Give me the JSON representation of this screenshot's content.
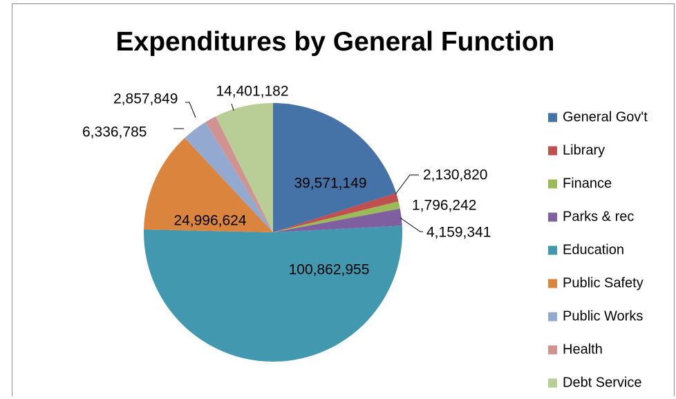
{
  "chart_data": {
    "type": "pie",
    "title": "Expenditures by General Function",
    "legend_position": "right",
    "categories": [
      "General Gov't",
      "Library",
      "Finance",
      "Parks & rec",
      "Education",
      "Public Safety",
      "Public Works",
      "Health",
      "Debt Service"
    ],
    "values": [
      39571149,
      2130820,
      1796242,
      4159341,
      100862955,
      24996624,
      6336785,
      2857849,
      14401182
    ],
    "value_labels": [
      "39,571,149",
      "2,130,820",
      "1,796,242",
      "4,159,341",
      "100,862,955",
      "24,996,624",
      "6,336,785",
      "2,857,849",
      "14,401,182"
    ],
    "colors": [
      "#4572a7",
      "#c0504d",
      "#9bbb59",
      "#7f5fa0",
      "#4198af",
      "#db843d",
      "#93a9cf",
      "#d19392",
      "#b9cd96"
    ]
  }
}
